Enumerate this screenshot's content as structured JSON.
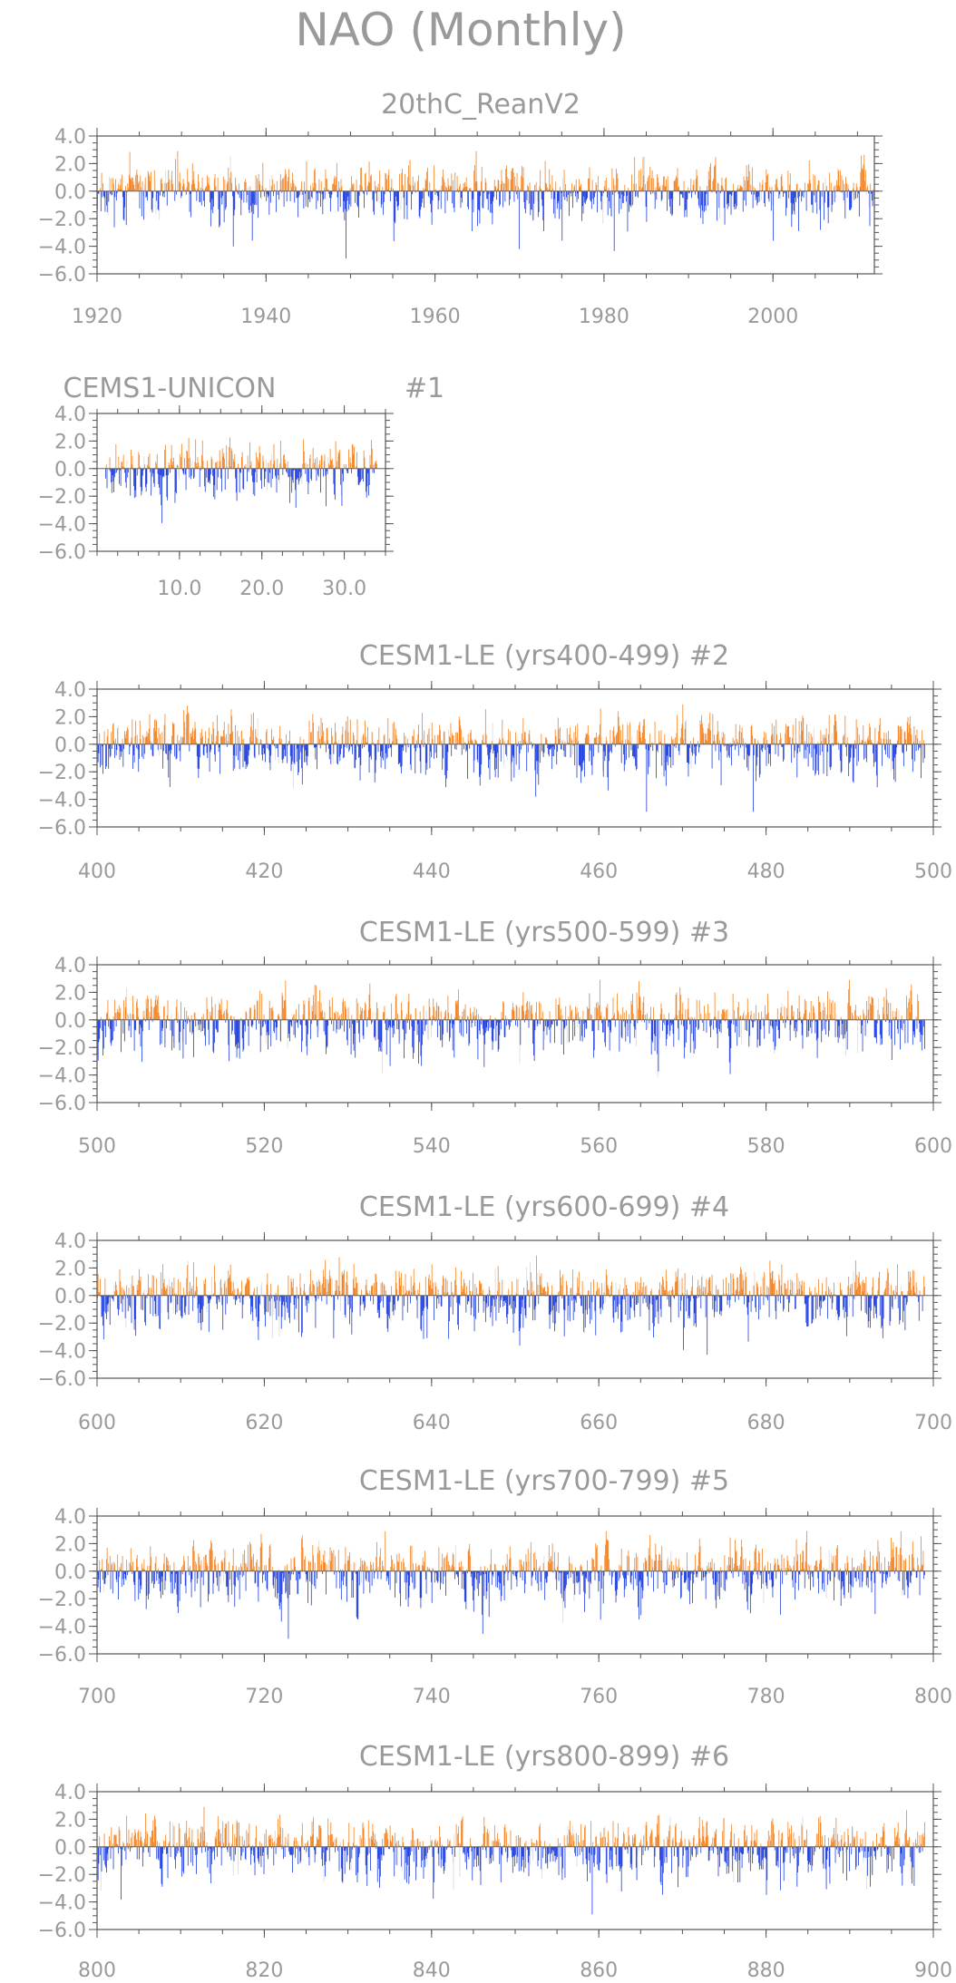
{
  "figure": {
    "title": "NAO (Monthly)"
  },
  "colors": {
    "positive": "#f58220",
    "negative": "#1f3ee0",
    "text": "#9a9a9a",
    "axis": "#555555"
  },
  "chart_data": [
    {
      "type": "bar",
      "title": "20thC_ReanV2",
      "ylim": [
        -6.0,
        4.0
      ],
      "yticks": [
        4.0,
        2.0,
        0.0,
        -2.0,
        -4.0,
        -6.0
      ],
      "ytick_labels": [
        "4.0",
        "2.0",
        "0.0",
        "−2.0",
        "−4.0",
        "−6.0"
      ],
      "xlim": [
        1920,
        2012
      ],
      "xticks": [
        1920,
        1940,
        1960,
        1980,
        2000
      ],
      "xtick_labels": [
        "1920",
        "1940",
        "1960",
        "1980",
        "2000"
      ],
      "x_monthly_from": 1920,
      "x_monthly_to": 2012,
      "amp_pos": 1.1,
      "amp_neg": 1.3,
      "seed": 11
    },
    {
      "type": "bar",
      "title": "CEMS1-UNICON",
      "subtitle": "#1",
      "ylim": [
        -6.0,
        4.0
      ],
      "yticks": [
        4.0,
        2.0,
        0.0,
        -2.0,
        -4.0,
        -6.0
      ],
      "ytick_labels": [
        "4.0",
        "2.0",
        "0.0",
        "−2.0",
        "−4.0",
        "−6.0"
      ],
      "xlim": [
        0,
        35
      ],
      "xticks": [
        10,
        20,
        30
      ],
      "xtick_labels": [
        "10.0",
        "20.0",
        "30.0"
      ],
      "x_monthly_from": 1,
      "x_monthly_to": 34,
      "amp_pos": 1.1,
      "amp_neg": 1.4,
      "seed": 23
    },
    {
      "type": "bar",
      "title": "CESM1-LE (yrs400-499) #2",
      "ylim": [
        -6.0,
        4.0
      ],
      "yticks": [
        4.0,
        2.0,
        0.0,
        -2.0,
        -4.0,
        -6.0
      ],
      "ytick_labels": [
        "4.0",
        "2.0",
        "0.0",
        "−2.0",
        "−4.0",
        "−6.0"
      ],
      "xlim": [
        400,
        500
      ],
      "xticks": [
        400,
        420,
        440,
        460,
        480,
        500
      ],
      "xtick_labels": [
        "400",
        "420",
        "440",
        "460",
        "480",
        "500"
      ],
      "x_monthly_from": 400,
      "x_monthly_to": 499,
      "amp_pos": 1.2,
      "amp_neg": 1.5,
      "seed": 37
    },
    {
      "type": "bar",
      "title": "CESM1-LE (yrs500-599) #3",
      "ylim": [
        -6.0,
        4.0
      ],
      "yticks": [
        4.0,
        2.0,
        0.0,
        -2.0,
        -4.0,
        -6.0
      ],
      "ytick_labels": [
        "4.0",
        "2.0",
        "0.0",
        "−2.0",
        "−4.0",
        "−6.0"
      ],
      "xlim": [
        500,
        600
      ],
      "xticks": [
        500,
        520,
        540,
        560,
        580,
        600
      ],
      "xtick_labels": [
        "500",
        "520",
        "540",
        "560",
        "580",
        "600"
      ],
      "x_monthly_from": 500,
      "x_monthly_to": 599,
      "amp_pos": 1.2,
      "amp_neg": 1.5,
      "seed": 53
    },
    {
      "type": "bar",
      "title": "CESM1-LE (yrs600-699) #4",
      "ylim": [
        -6.0,
        4.0
      ],
      "yticks": [
        4.0,
        2.0,
        0.0,
        -2.0,
        -4.0,
        -6.0
      ],
      "ytick_labels": [
        "4.0",
        "2.0",
        "0.0",
        "−2.0",
        "−4.0",
        "−6.0"
      ],
      "xlim": [
        600,
        700
      ],
      "xticks": [
        600,
        620,
        640,
        660,
        680,
        700
      ],
      "xtick_labels": [
        "600",
        "620",
        "640",
        "660",
        "680",
        "700"
      ],
      "x_monthly_from": 600,
      "x_monthly_to": 699,
      "amp_pos": 1.2,
      "amp_neg": 1.5,
      "seed": 71
    },
    {
      "type": "bar",
      "title": "CESM1-LE (yrs700-799) #5",
      "ylim": [
        -6.0,
        4.0
      ],
      "yticks": [
        4.0,
        2.0,
        0.0,
        -2.0,
        -4.0,
        -6.0
      ],
      "ytick_labels": [
        "4.0",
        "2.0",
        "0.0",
        "−2.0",
        "−4.0",
        "−6.0"
      ],
      "xlim": [
        700,
        800
      ],
      "xticks": [
        700,
        720,
        740,
        760,
        780,
        800
      ],
      "xtick_labels": [
        "700",
        "720",
        "740",
        "760",
        "780",
        "800"
      ],
      "x_monthly_from": 700,
      "x_monthly_to": 799,
      "amp_pos": 1.2,
      "amp_neg": 1.5,
      "seed": 89
    },
    {
      "type": "bar",
      "title": "CESM1-LE (yrs800-899) #6",
      "ylim": [
        -6.0,
        4.0
      ],
      "yticks": [
        4.0,
        2.0,
        0.0,
        -2.0,
        -4.0,
        -6.0
      ],
      "ytick_labels": [
        "4.0",
        "2.0",
        "0.0",
        "−2.0",
        "−4.0",
        "−6.0"
      ],
      "xlim": [
        800,
        900
      ],
      "xticks": [
        800,
        820,
        840,
        860,
        880,
        900
      ],
      "xtick_labels": [
        "800",
        "820",
        "840",
        "860",
        "880",
        "900"
      ],
      "x_monthly_from": 800,
      "x_monthly_to": 899,
      "amp_pos": 1.2,
      "amp_neg": 1.5,
      "seed": 97
    }
  ]
}
